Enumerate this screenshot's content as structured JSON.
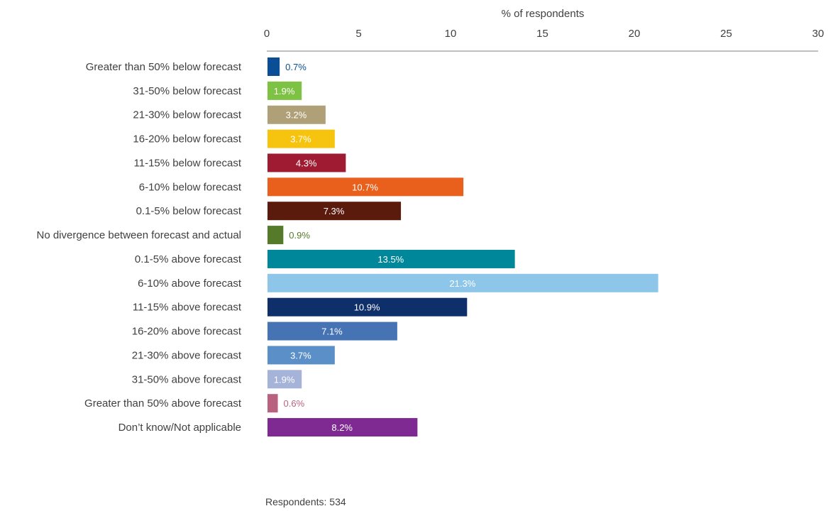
{
  "chart_data": {
    "type": "bar",
    "orientation": "horizontal",
    "xlabel": "% of respondents",
    "xlim": [
      0,
      30
    ],
    "xticks": [
      0,
      5,
      10,
      15,
      20,
      25,
      30
    ],
    "grid": false,
    "legend": "none",
    "categories": [
      "Greater than 50% below forecast",
      "31-50% below forecast",
      "21-30% below forecast",
      "16-20% below forecast",
      "11-15% below forecast",
      "6-10% below forecast",
      "0.1-5% below forecast",
      "No divergence between forecast and actual",
      "0.1-5% above forecast",
      "6-10% above forecast",
      "11-15% above forecast",
      "16-20% above forecast",
      "21-30% above forecast",
      "31-50% above forecast",
      "Greater than 50% above forecast",
      "Don’t know/Not applicable"
    ],
    "values": [
      0.7,
      1.9,
      3.2,
      3.7,
      4.3,
      10.7,
      7.3,
      0.9,
      13.5,
      21.3,
      10.9,
      7.1,
      3.7,
      1.9,
      0.6,
      8.2
    ],
    "value_labels": [
      "0.7%",
      "1.9%",
      "3.2%",
      "3.7%",
      "4.3%",
      "10.7%",
      "7.3%",
      "0.9%",
      "13.5%",
      "21.3%",
      "10.9%",
      "7.1%",
      "3.7%",
      "1.9%",
      "0.6%",
      "8.2%"
    ],
    "colors": [
      "#0a4f96",
      "#7dc242",
      "#b0a077",
      "#f6c40e",
      "#9e1b32",
      "#e8601c",
      "#5a1a0c",
      "#557a2a",
      "#00879a",
      "#8ec6ea",
      "#0f2f6b",
      "#4573b4",
      "#5b8fc8",
      "#a6b3d8",
      "#b86280",
      "#7f2a93"
    ],
    "label_inside": [
      false,
      true,
      true,
      true,
      true,
      true,
      true,
      false,
      true,
      true,
      true,
      true,
      true,
      true,
      false,
      true
    ],
    "footnote": "Respondents: 534"
  }
}
